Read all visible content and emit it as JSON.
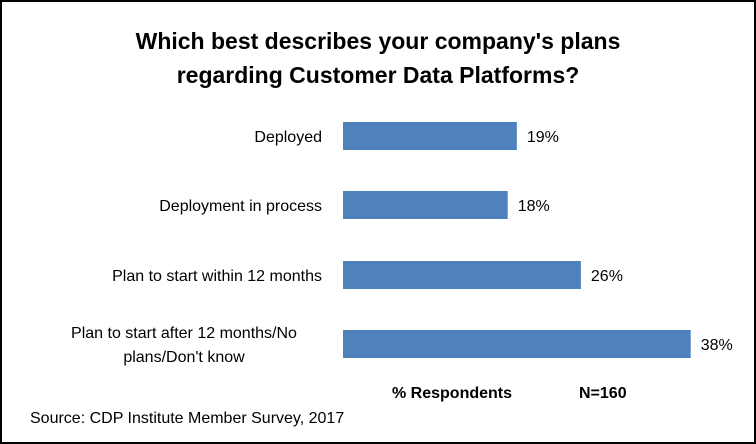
{
  "chart_data": {
    "type": "bar",
    "orientation": "horizontal",
    "title": "Which best describes your company's plans regarding Customer Data Platforms?",
    "title_lines": [
      "Which best describes your company's plans",
      "regarding Customer Data Platforms?"
    ],
    "categories": [
      "Deployed",
      "Deployment in process",
      "Plan to start within 12 months",
      "Plan to start after 12 months/No plans/Don't know"
    ],
    "category_lines": [
      [
        "Deployed"
      ],
      [
        "Deployment in process"
      ],
      [
        "Plan to start within 12 months"
      ],
      [
        "Plan to start after 12 months/No",
        "plans/Don't know"
      ]
    ],
    "values": [
      19,
      18,
      26,
      38
    ],
    "data_labels": [
      "19%",
      "18%",
      "26%",
      "38%"
    ],
    "xlabel": "% Respondents",
    "annotation": "N=160",
    "source": "Source: CDP Institute Member Survey, 2017",
    "xlim": [
      0,
      40
    ],
    "grid": false,
    "legend": "none",
    "bar_color": "#4F81BD"
  }
}
